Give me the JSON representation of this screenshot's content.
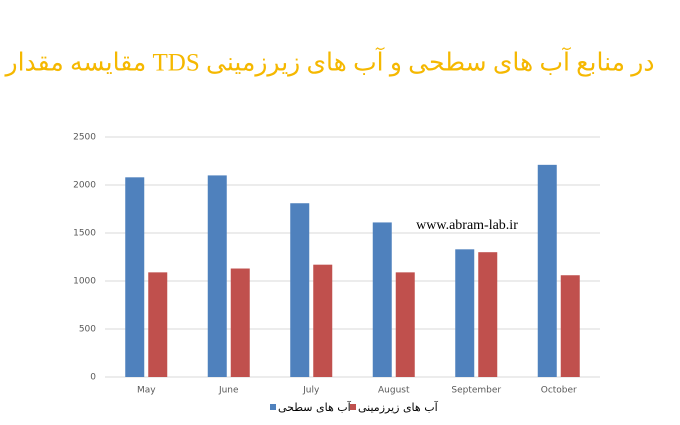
{
  "chart_data": {
    "type": "bar",
    "title": "مقایسه مقدار TDS در منابع آب های سطحی و آب های زیرزمینی",
    "annotation": "www.abram-lab.ir",
    "categories": [
      "May",
      "June",
      "July",
      "August",
      "September",
      "October"
    ],
    "series": [
      {
        "name": "آب های سطحی",
        "color": "#4f81bd",
        "values": [
          2080,
          2100,
          1810,
          1610,
          1330,
          2210
        ]
      },
      {
        "name": "آب های زیرزمینی",
        "color": "#c0504d",
        "values": [
          1090,
          1130,
          1170,
          1090,
          1300,
          1060
        ]
      }
    ],
    "ylim": [
      0,
      2500
    ],
    "yticks": [
      0,
      500,
      1000,
      1500,
      2000,
      2500
    ],
    "grid": true,
    "legend": "bottom"
  }
}
